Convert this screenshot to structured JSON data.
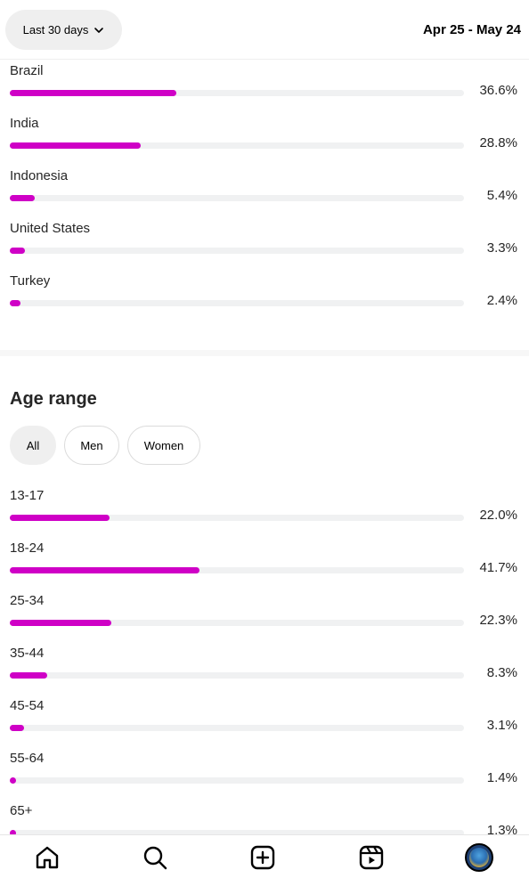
{
  "header": {
    "range_label": "Last 30 days",
    "date_range": "Apr 25 - May 24"
  },
  "countries": [
    {
      "label": "Brazil",
      "percent_text": "36.6%",
      "value": 36.6
    },
    {
      "label": "India",
      "percent_text": "28.8%",
      "value": 28.8
    },
    {
      "label": "Indonesia",
      "percent_text": "5.4%",
      "value": 5.4
    },
    {
      "label": "United States",
      "percent_text": "3.3%",
      "value": 3.3
    },
    {
      "label": "Turkey",
      "percent_text": "2.4%",
      "value": 2.4
    }
  ],
  "age_section": {
    "title": "Age range",
    "filters": [
      "All",
      "Men",
      "Women"
    ],
    "selected_filter": "All",
    "ranges": [
      {
        "label": "13-17",
        "percent_text": "22.0%",
        "value": 22.0
      },
      {
        "label": "18-24",
        "percent_text": "41.7%",
        "value": 41.7
      },
      {
        "label": "25-34",
        "percent_text": "22.3%",
        "value": 22.3
      },
      {
        "label": "35-44",
        "percent_text": "8.3%",
        "value": 8.3
      },
      {
        "label": "45-54",
        "percent_text": "3.1%",
        "value": 3.1
      },
      {
        "label": "55-64",
        "percent_text": "1.4%",
        "value": 1.4
      },
      {
        "label": "65+",
        "percent_text": "1.3%",
        "value": 1.3
      }
    ]
  },
  "colors": {
    "bar_fill": "#cf00c6",
    "bar_track": "#f0f1f2"
  },
  "bottom_nav": [
    "home-icon",
    "search-icon",
    "create-icon",
    "reels-icon",
    "profile-avatar"
  ]
}
